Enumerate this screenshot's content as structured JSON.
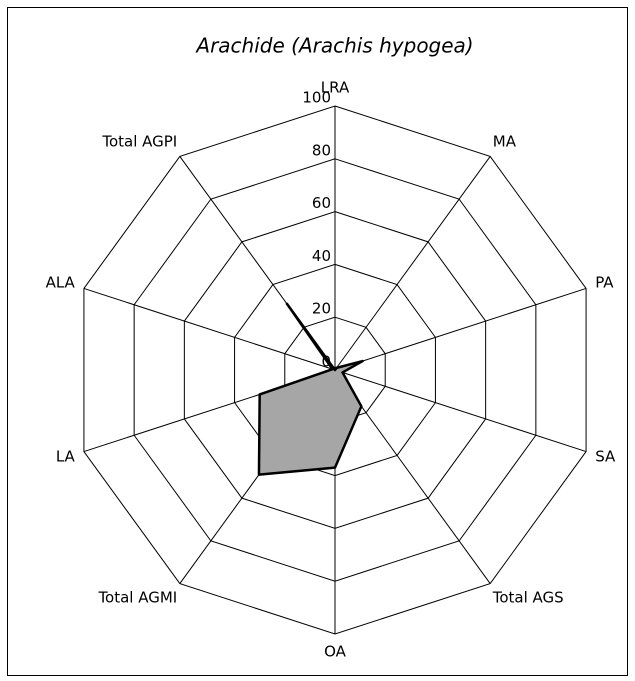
{
  "chart_data": {
    "type": "radar",
    "title": "Arachide (Arachis hypogea)",
    "categories": [
      "LRA",
      "MA",
      "PA",
      "SA",
      "Total AGS",
      "OA",
      "Total AGMI",
      "LA",
      "ALA",
      "Total AGPI"
    ],
    "series": [
      {
        "name": "Arachide",
        "color": "#a6a6a6",
        "values": [
          0,
          1,
          11,
          3,
          17,
          37,
          49,
          30,
          1,
          31
        ]
      }
    ],
    "ylim": [
      0,
      100
    ],
    "yticks": [
      0,
      20,
      40,
      60,
      80,
      100
    ],
    "grid": true
  }
}
